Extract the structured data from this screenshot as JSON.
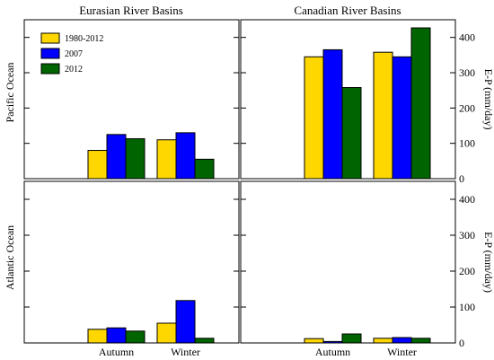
{
  "colors": {
    "1980-2012": "#FFD700",
    "2007": "#0000FF",
    "2012": "#006400"
  },
  "figure": {
    "col_titles": [
      "Eurasian River Basins",
      "Canadian River Basins"
    ],
    "row_labels": [
      "Pacific Ocean",
      "Atlantic Ocean"
    ],
    "ylabel": "E-P (mm/day)",
    "legend": [
      "1980-2012",
      "2007",
      "2012"
    ]
  },
  "chart_data": [
    {
      "type": "bar",
      "title": "Eurasian River Basins",
      "row": "Pacific Ocean",
      "categories": [
        "Autumn",
        "Winter"
      ],
      "ylim": [
        0,
        450
      ],
      "series": [
        {
          "name": "1980-2012",
          "values": [
            80,
            110
          ]
        },
        {
          "name": "2007",
          "values": [
            125,
            130
          ]
        },
        {
          "name": "2012",
          "values": [
            113,
            55
          ]
        }
      ]
    },
    {
      "type": "bar",
      "title": "Canadian River Basins",
      "row": "Pacific Ocean",
      "categories": [
        "Autumn",
        "Winter"
      ],
      "ylim": [
        0,
        450
      ],
      "yticks": [
        0,
        100,
        200,
        300,
        400
      ],
      "ylabel": "E-P (mm/day)",
      "series": [
        {
          "name": "1980-2012",
          "values": [
            345,
            358
          ]
        },
        {
          "name": "2007",
          "values": [
            365,
            345
          ]
        },
        {
          "name": "2012",
          "values": [
            258,
            427
          ]
        }
      ]
    },
    {
      "type": "bar",
      "row": "Atlantic Ocean",
      "categories": [
        "Autumn",
        "Winter"
      ],
      "xticks": [
        "Autumn",
        "Winter"
      ],
      "ylim": [
        0,
        450
      ],
      "series": [
        {
          "name": "1980-2012",
          "values": [
            38,
            55
          ]
        },
        {
          "name": "2007",
          "values": [
            42,
            118
          ]
        },
        {
          "name": "2012",
          "values": [
            33,
            13
          ]
        }
      ]
    },
    {
      "type": "bar",
      "row": "Atlantic Ocean",
      "categories": [
        "Autumn",
        "Winter"
      ],
      "xticks": [
        "Autumn",
        "Winter"
      ],
      "ylim": [
        0,
        450
      ],
      "yticks": [
        0,
        100,
        200,
        300,
        400
      ],
      "ylabel": "E-P (mm/day)",
      "series": [
        {
          "name": "1980-2012",
          "values": [
            12,
            13
          ]
        },
        {
          "name": "2007",
          "values": [
            4,
            15
          ]
        },
        {
          "name": "2012",
          "values": [
            25,
            13
          ]
        }
      ]
    }
  ]
}
